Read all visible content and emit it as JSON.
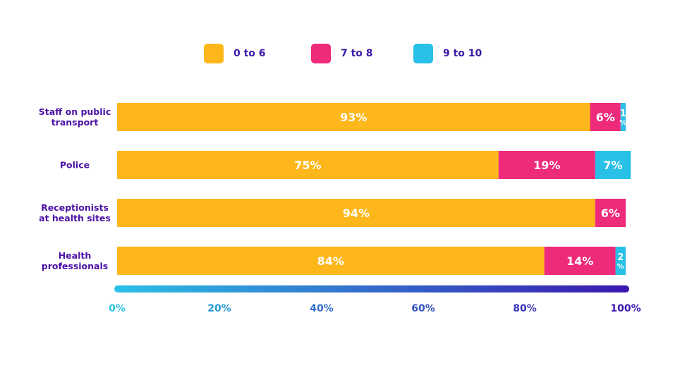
{
  "colors": {
    "series": [
      "#FDB71A",
      "#EE2A7B",
      "#29C0E8"
    ],
    "category_text": "#4b12a6",
    "axis_gradient": [
      "#2cc0e6",
      "#3a17b0"
    ]
  },
  "legend": [
    {
      "label": "0 to 6"
    },
    {
      "label": "7 to 8"
    },
    {
      "label": "9 to 10"
    }
  ],
  "chart_data": {
    "type": "bar",
    "orientation": "horizontal",
    "stacked": true,
    "categories": [
      [
        "Staff on public",
        "transport"
      ],
      [
        "Police"
      ],
      [
        "Receptionists",
        "at health sites"
      ],
      [
        "Health",
        "professionals"
      ]
    ],
    "series": [
      {
        "name": "0 to 6",
        "values": [
          93,
          75,
          94,
          84
        ],
        "labels": [
          "93%",
          "75%",
          "94%",
          "84%"
        ]
      },
      {
        "name": "7 to 8",
        "values": [
          6,
          19,
          6,
          14
        ],
        "labels": [
          "6%",
          "19%",
          "6%",
          "14%"
        ]
      },
      {
        "name": "9 to 10",
        "values": [
          1,
          7,
          0,
          2
        ],
        "labels": [
          [
            "1",
            "%"
          ],
          [
            "7%"
          ],
          [],
          [
            "2",
            "%"
          ]
        ]
      }
    ],
    "xlim": [
      0,
      100
    ],
    "x_ticks": [
      "0%",
      "20%",
      "40%",
      "60%",
      "80%",
      "100%"
    ],
    "grid": false,
    "legend_position": "top"
  }
}
